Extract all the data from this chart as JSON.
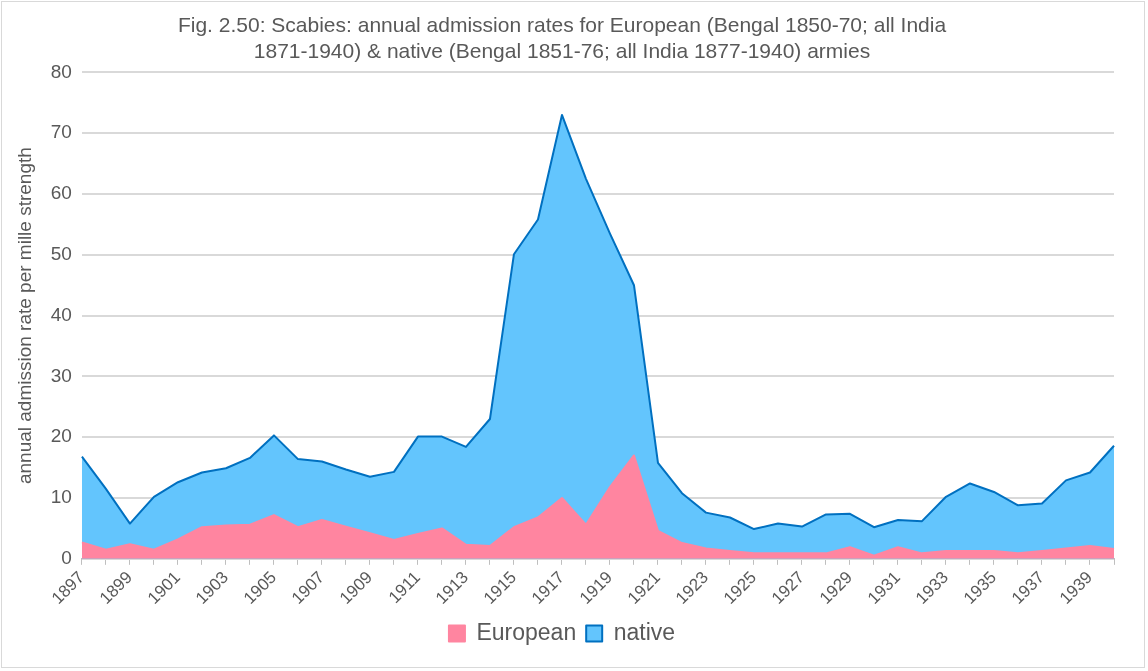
{
  "chart_data": {
    "type": "area",
    "title": "Fig. 2.50: Scabies: annual admission rates for European (Bengal 1850-70; all India 1871-1940) & native (Bengal 1851-76; all India 1877-1940) armies",
    "ylabel": "annual admission rate per mille strength",
    "categories": [
      "1897",
      null,
      "1899",
      null,
      "1901",
      null,
      "1903",
      null,
      "1905",
      null,
      "1907",
      null,
      "1909",
      null,
      "1911",
      null,
      "1913",
      null,
      "1915",
      null,
      "1917",
      null,
      "1919",
      null,
      "1921",
      null,
      "1923",
      null,
      "1925",
      null,
      "1927",
      null,
      "1929",
      null,
      "1931",
      null,
      "1933",
      null,
      "1935",
      null,
      "1937",
      null,
      "1939",
      null
    ],
    "series": [
      {
        "name": "European",
        "color": "#ff85a0",
        "values": [
          2.7,
          1.5,
          2.4,
          1.5,
          3.2,
          5.2,
          5.5,
          5.6,
          7.2,
          5.2,
          6.4,
          5.3,
          4.2,
          3.1,
          4.1,
          5.0,
          2.3,
          2.1,
          5.2,
          6.8,
          10,
          5.6,
          11.8,
          17,
          4.6,
          2.6,
          1.7,
          1.3,
          0.9,
          0.9,
          0.9,
          0.9,
          1.9,
          0.5,
          1.9,
          0.9,
          1.3,
          1.3,
          1.3,
          0.9,
          1.3,
          1.7,
          2.1,
          1.6
        ]
      },
      {
        "name": "native",
        "color": "#63c5fd",
        "values": [
          16.8,
          11.5,
          5.8,
          10.2,
          12.6,
          14.2,
          14.9,
          16.6,
          20.3,
          16.4,
          16.0,
          14.7,
          13.5,
          14.3,
          20.1,
          20.1,
          18.4,
          23.0,
          50.1,
          55.8,
          73,
          62.5,
          53.5,
          45,
          15.8,
          10.8,
          7.6,
          6.8,
          4.9,
          5.8,
          5.3,
          7.3,
          7.4,
          5.2,
          6.4,
          6.2,
          10.2,
          12.4,
          11.0,
          8.8,
          9.1,
          12.9,
          14.2,
          18.6
        ]
      }
    ],
    "ylim": [
      0,
      80
    ],
    "yticks": [
      0,
      10,
      20,
      30,
      40,
      50,
      60,
      70,
      80
    ],
    "grid": "y",
    "legend": "bottom"
  }
}
